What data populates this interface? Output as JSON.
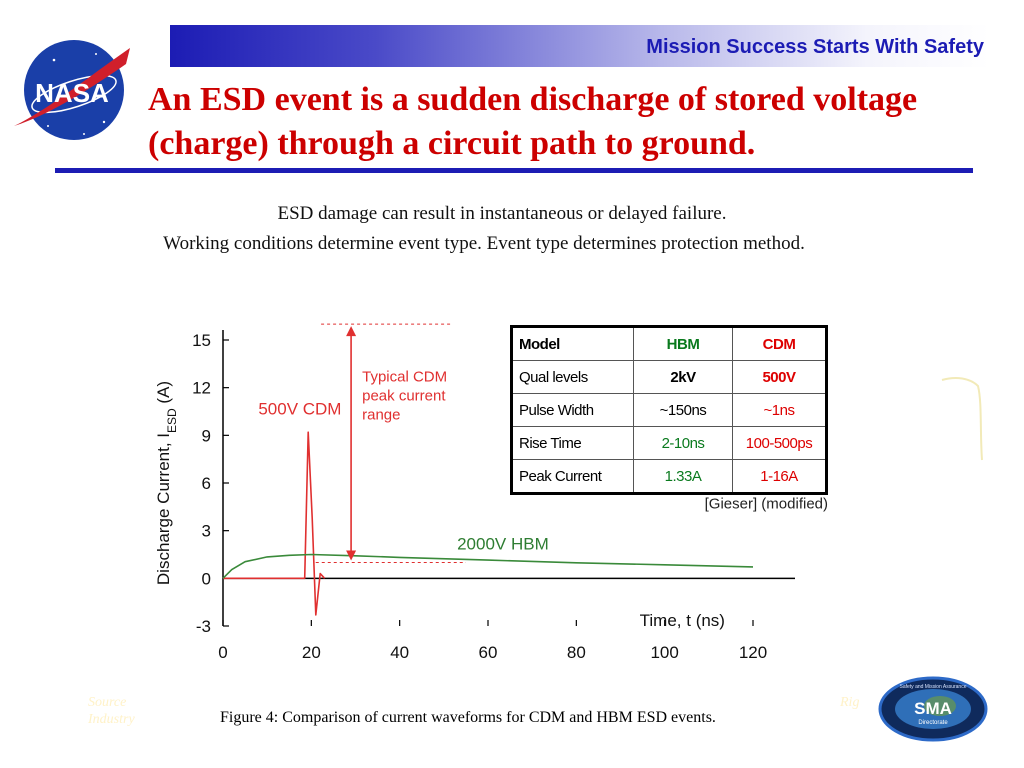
{
  "header": {
    "tagline": "Mission Success Starts With Safety",
    "logo_text": "NASA"
  },
  "title": "An ESD event is a sudden discharge of stored voltage (charge) through a circuit path to ground.",
  "subtitle_lines": [
    "ESD damage can result in instantaneous or delayed failure.",
    "Working conditions determine event type.  Event type determines protection method."
  ],
  "chart_data": {
    "type": "line",
    "title": "",
    "xlabel": "Time, t (ns)",
    "ylabel": "Discharge Current, I",
    "ylabel_sub": "ESD",
    "ylabel_unit": " (A)",
    "xlim": [
      0,
      120
    ],
    "ylim": [
      -3,
      15
    ],
    "x_ticks": [
      0,
      20,
      40,
      60,
      80,
      100,
      120
    ],
    "y_ticks": [
      -3,
      0,
      3,
      6,
      9,
      12,
      15
    ],
    "grid": false,
    "series": [
      {
        "name": "500V CDM",
        "color": "#e03030",
        "x": [
          0,
          18.5,
          19.3,
          20.2,
          21.0,
          22.0,
          23.0
        ],
        "y": [
          0,
          0,
          9.2,
          3.8,
          -2.3,
          0.3,
          0
        ]
      },
      {
        "name": "2000V HBM",
        "color": "#3a8a3a",
        "x": [
          0,
          2,
          5,
          10,
          15,
          20,
          30,
          40,
          60,
          80,
          100,
          120
        ],
        "y": [
          0,
          0.55,
          1.05,
          1.35,
          1.45,
          1.5,
          1.42,
          1.32,
          1.15,
          0.98,
          0.85,
          0.72
        ]
      }
    ],
    "annotations": {
      "cdm_label": "500V CDM",
      "hbm_label": "2000V HBM",
      "range_label": [
        "Typical CDM",
        "peak current",
        "range"
      ],
      "range_bounds": [
        1,
        16
      ]
    },
    "table": {
      "headers": [
        "Model",
        "HBM",
        "CDM"
      ],
      "rows": [
        [
          "Qual levels",
          "2kV",
          "500V"
        ],
        [
          "Pulse Width",
          "~150ns",
          "~1ns"
        ],
        [
          "Rise Time",
          "2-10ns",
          "100-500ps"
        ],
        [
          "Peak Current",
          "1.33A",
          "1-16A"
        ]
      ]
    },
    "source_note": "[Gieser] (modified)",
    "caption": "Figure 4: Comparison of current waveforms for CDM and HBM ESD events."
  },
  "footer": {
    "left_lines": [
      "Source",
      "Industry"
    ],
    "right_text": "Rig",
    "badge_small": "Safety and Mission Assurance",
    "badge_main": "SMA",
    "badge_sub": "Directorate"
  },
  "colors": {
    "title": "#cc0000",
    "banner_blue": "#1c1cb4",
    "hbm_green": "#0a7a1e",
    "cdm_red": "#dd0000"
  },
  "icons": [
    "nasa-meatball-logo",
    "sma-directorate-badge"
  ]
}
